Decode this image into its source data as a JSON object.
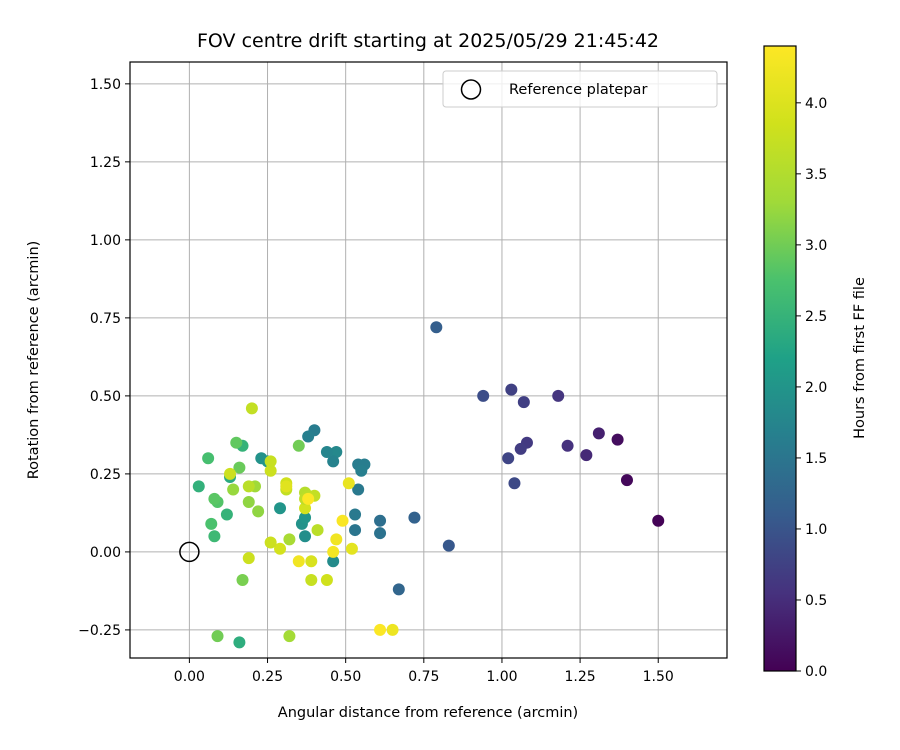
{
  "chart_data": {
    "type": "scatter",
    "title": "FOV centre drift starting at 2025/05/29 21:45:42",
    "xlabel": "Angular distance from reference (arcmin)",
    "ylabel": "Rotation from reference (arcmin)",
    "xlim": [
      -0.19,
      1.72
    ],
    "ylim": [
      -0.34,
      1.57
    ],
    "x_ticks": [
      0.0,
      0.25,
      0.5,
      0.75,
      1.0,
      1.25,
      1.5
    ],
    "x_tick_labels": [
      "0.00",
      "0.25",
      "0.50",
      "0.75",
      "1.00",
      "1.25",
      "1.50"
    ],
    "y_ticks": [
      -0.25,
      0.0,
      0.25,
      0.5,
      0.75,
      1.0,
      1.25,
      1.5
    ],
    "y_tick_labels": [
      "−0.25",
      "0.00",
      "0.25",
      "0.50",
      "0.75",
      "1.00",
      "1.25",
      "1.50"
    ],
    "grid": true,
    "legend": {
      "placement": "top-right",
      "label": "Reference platepar"
    },
    "reference_point": {
      "x": 0.0,
      "y": 0.0
    },
    "colorbar": {
      "label": "Hours from first FF file",
      "colormap": "viridis",
      "range": [
        0.0,
        4.4
      ],
      "ticks": [
        0.0,
        0.5,
        1.0,
        1.5,
        2.0,
        2.5,
        3.0,
        3.5,
        4.0
      ],
      "tick_labels": [
        "0.0",
        "0.5",
        "1.0",
        "1.5",
        "2.0",
        "2.5",
        "3.0",
        "3.5",
        "4.0"
      ]
    },
    "series": [
      {
        "x": [
          1.5,
          1.4,
          1.37,
          1.31,
          1.27,
          1.21,
          1.18,
          1.08,
          1.06,
          1.07,
          1.03,
          1.02,
          1.04,
          0.94
        ],
        "y": [
          0.1,
          0.23,
          0.36,
          0.38,
          0.31,
          0.34,
          0.5,
          0.35,
          0.33,
          0.48,
          0.52,
          0.3,
          0.22,
          0.5
        ],
        "hours": [
          0.02,
          0.08,
          0.13,
          0.35,
          0.45,
          0.55,
          0.6,
          0.65,
          0.7,
          0.72,
          0.75,
          0.8,
          0.85,
          0.9
        ]
      },
      {
        "x": [
          0.83,
          0.79,
          0.72,
          0.67,
          0.61,
          0.61,
          0.54,
          0.54,
          0.56,
          0.55,
          0.53,
          0.53,
          0.47,
          0.46,
          0.44,
          0.4,
          0.38,
          0.46,
          0.37,
          0.36,
          0.37
        ],
        "y": [
          0.02,
          0.72,
          0.11,
          -0.12,
          0.1,
          0.06,
          0.28,
          0.2,
          0.28,
          0.26,
          0.07,
          0.12,
          0.32,
          0.29,
          0.32,
          0.39,
          0.37,
          -0.03,
          0.05,
          0.09,
          0.11
        ],
        "hours": [
          1.05,
          1.15,
          1.2,
          1.25,
          1.4,
          1.45,
          1.6,
          1.55,
          1.62,
          1.65,
          1.5,
          1.55,
          1.8,
          1.7,
          1.75,
          1.6,
          1.65,
          1.85,
          1.9,
          1.95,
          2.0
        ]
      },
      {
        "x": [
          0.29,
          0.25,
          0.23,
          0.17,
          0.16,
          0.13,
          0.12,
          0.06,
          0.03,
          0.07,
          0.09,
          0.08,
          0.08,
          0.15,
          0.16,
          0.09
        ],
        "y": [
          0.14,
          0.29,
          0.3,
          0.34,
          -0.29,
          0.24,
          0.12,
          0.3,
          0.21,
          0.09,
          0.16,
          0.17,
          0.05,
          0.35,
          0.27,
          -0.27
        ],
        "hours": [
          2.0,
          2.05,
          1.95,
          2.5,
          2.4,
          2.35,
          2.5,
          2.7,
          2.45,
          2.75,
          2.8,
          2.85,
          2.6,
          2.9,
          2.95,
          3.0
        ]
      },
      {
        "x": [
          0.35,
          0.17,
          0.19,
          0.21,
          0.14,
          0.13,
          0.19,
          0.22,
          0.26,
          0.26,
          0.2,
          0.19,
          0.31,
          0.31,
          0.32,
          0.29,
          0.37,
          0.37,
          0.38,
          0.4,
          0.39,
          0.37,
          0.39,
          0.41,
          0.44,
          0.32,
          0.26
        ],
        "y": [
          0.34,
          -0.09,
          0.16,
          0.21,
          0.2,
          0.25,
          0.21,
          0.13,
          0.26,
          0.29,
          0.46,
          -0.02,
          0.22,
          0.2,
          0.04,
          0.01,
          0.19,
          0.14,
          0.18,
          0.18,
          -0.09,
          0.17,
          -0.03,
          0.07,
          -0.09,
          -0.27,
          0.03
        ],
        "hours": [
          3.0,
          3.05,
          3.2,
          3.3,
          3.25,
          3.8,
          3.6,
          3.2,
          3.8,
          3.75,
          3.7,
          3.8,
          3.85,
          3.7,
          3.4,
          3.9,
          3.55,
          3.9,
          3.6,
          3.7,
          3.75,
          3.65,
          3.95,
          3.6,
          3.85,
          3.35,
          3.8
        ]
      },
      {
        "x": [
          0.38,
          0.49,
          0.51,
          0.52,
          0.47,
          0.46,
          0.61,
          0.65,
          0.35,
          0.31
        ],
        "y": [
          0.17,
          0.1,
          0.22,
          0.01,
          0.04,
          0.0,
          -0.25,
          -0.25,
          -0.03,
          0.21
        ],
        "hours": [
          4.4,
          4.35,
          4.15,
          4.1,
          4.25,
          4.3,
          4.38,
          4.2,
          4.25,
          4.05
        ]
      }
    ]
  }
}
